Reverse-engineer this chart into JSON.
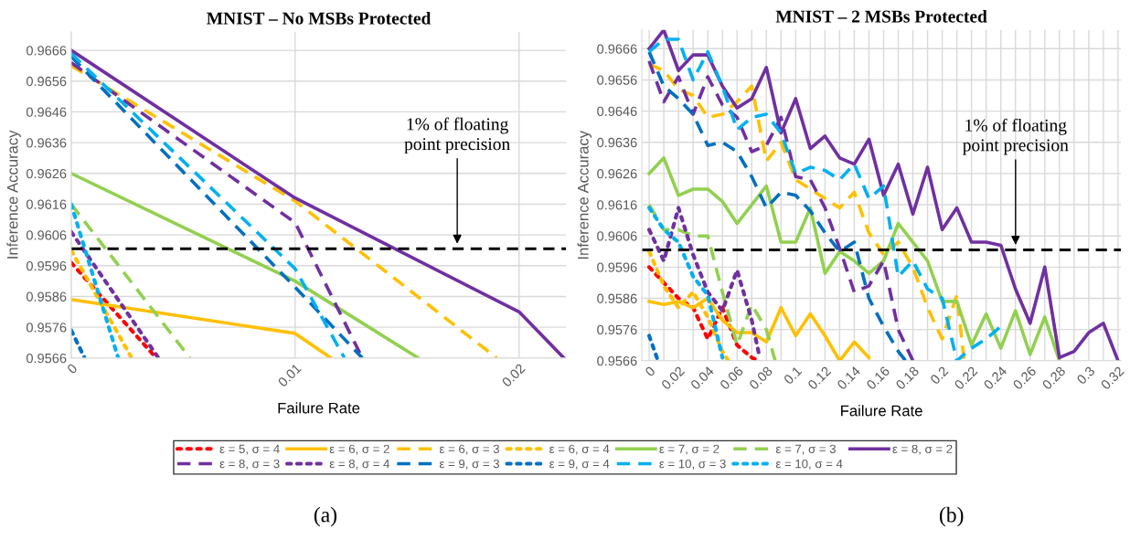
{
  "chart_data": [
    {
      "type": "line",
      "title": "MNIST – No MSBs Protected",
      "xlabel": "Failure Rate",
      "ylabel": "Inference Accuracy",
      "xlim": [
        0,
        0.0221
      ],
      "xticks": [
        0,
        0.01,
        0.02
      ],
      "ylim": [
        0.9566,
        0.9672
      ],
      "yticks": [
        0.9566,
        0.9576,
        0.9586,
        0.9596,
        0.9606,
        0.9616,
        0.9626,
        0.9636,
        0.9646,
        0.9656,
        0.9666
      ],
      "grid": true,
      "legend": "bottom",
      "ref_lines": [
        {
          "axis": "y",
          "value": 0.96015,
          "color": "#000000",
          "line_style": "dashed",
          "label": "1% of floating\npoint precision"
        }
      ],
      "annotations": [
        "(a)"
      ],
      "series": [
        {
          "name": "ε = 5, σ = 4",
          "color": "#ff0000",
          "line_style": "dotted",
          "x": [
            0,
            0.0038
          ],
          "values": [
            0.9597,
            0.9566
          ]
        },
        {
          "name": "ε = 6, σ = 2",
          "color": "#ffc000",
          "line_style": "solid",
          "x": [
            0,
            0.01,
            0.0116
          ],
          "values": [
            0.9585,
            0.9574,
            0.9566
          ]
        },
        {
          "name": "ε = 6, σ = 3",
          "color": "#ffc000",
          "line_style": "dashed",
          "x": [
            0,
            0.01,
            0.019
          ],
          "values": [
            0.9661,
            0.9617,
            0.9566
          ]
        },
        {
          "name": "ε = 6, σ = 4",
          "color": "#ffc000",
          "line_style": "dotted",
          "x": [
            0,
            0.0027
          ],
          "values": [
            0.9601,
            0.9566
          ]
        },
        {
          "name": "ε = 7, σ = 2",
          "color": "#92d050",
          "line_style": "solid",
          "x": [
            0,
            0.01,
            0.0155
          ],
          "values": [
            0.9626,
            0.9591,
            0.9566
          ]
        },
        {
          "name": "ε = 7, σ = 3",
          "color": "#92d050",
          "line_style": "dashed",
          "x": [
            0,
            0.0053
          ],
          "values": [
            0.9616,
            0.9566
          ]
        },
        {
          "name": "ε = 8, σ = 2",
          "color": "#7030a0",
          "line_style": "solid",
          "x": [
            0,
            0.01,
            0.02,
            0.022
          ],
          "values": [
            0.9666,
            0.9618,
            0.9581,
            0.9566
          ]
        },
        {
          "name": "ε = 8, σ = 3",
          "color": "#7030a0",
          "line_style": "dashed",
          "x": [
            0,
            0.01,
            0.013
          ],
          "values": [
            0.9662,
            0.961,
            0.9566
          ]
        },
        {
          "name": "ε = 8, σ = 4",
          "color": "#7030a0",
          "line_style": "dotted",
          "x": [
            0,
            0.0039
          ],
          "values": [
            0.9607,
            0.9566
          ]
        },
        {
          "name": "ε = 9, σ = 3",
          "color": "#0070c0",
          "line_style": "dashed",
          "x": [
            0,
            0.01,
            0.013
          ],
          "values": [
            0.9664,
            0.9589,
            0.9566
          ]
        },
        {
          "name": "ε = 9, σ = 4",
          "color": "#0070c0",
          "line_style": "dotted",
          "x": [
            0,
            0.0006
          ],
          "values": [
            0.9575,
            0.9566
          ]
        },
        {
          "name": "ε = 10, σ = 3",
          "color": "#00b0f0",
          "line_style": "dashed",
          "x": [
            0,
            0.01,
            0.0122
          ],
          "values": [
            0.9665,
            0.9595,
            0.9566
          ]
        },
        {
          "name": "ε = 10, σ = 4",
          "color": "#00b0f0",
          "line_style": "dotted",
          "x": [
            0,
            0.0021
          ],
          "values": [
            0.9616,
            0.9566
          ]
        }
      ]
    },
    {
      "type": "line",
      "title": "MNIST – 2 MSBs Protected",
      "xlabel": "Failure Rate",
      "ylabel": "Inference Accuracy",
      "xlim": [
        -0.005,
        0.322
      ],
      "xticks": [
        0,
        {
          "value": 0.01,
          "label": null
        },
        0.02,
        {
          "value": 0.03,
          "label": null
        },
        0.04,
        {
          "value": 0.05,
          "label": null
        },
        0.06,
        {
          "value": 0.07,
          "label": null
        },
        0.08,
        {
          "value": 0.09,
          "label": null
        },
        0.1,
        {
          "value": 0.11,
          "label": null
        },
        0.12,
        {
          "value": 0.13,
          "label": null
        },
        0.14,
        {
          "value": 0.15,
          "label": null
        },
        0.16,
        {
          "value": 0.17,
          "label": null
        },
        0.18,
        {
          "value": 0.19,
          "label": null
        },
        0.2,
        {
          "value": 0.21,
          "label": null
        },
        0.22,
        {
          "value": 0.23,
          "label": null
        },
        0.24,
        {
          "value": 0.25,
          "label": null
        },
        0.26,
        {
          "value": 0.27,
          "label": null
        },
        0.28,
        {
          "value": 0.29,
          "label": null
        },
        0.3,
        {
          "value": 0.31,
          "label": null
        },
        0.32
      ],
      "ylim": [
        0.9566,
        0.9672
      ],
      "yticks": [
        0.9566,
        0.9576,
        0.9586,
        0.9596,
        0.9606,
        0.9616,
        0.9626,
        0.9636,
        0.9646,
        0.9656,
        0.9666
      ],
      "grid": true,
      "ref_lines": [
        {
          "axis": "y",
          "value": 0.96015,
          "color": "#000000",
          "line_style": "dashed",
          "label": "1% of floating\npoint precision"
        }
      ],
      "annotations": [
        "(b)"
      ],
      "series": [
        {
          "color": "#ff0000",
          "line_style": "dotted",
          "x": [
            0,
            0.01,
            0.02,
            0.03,
            0.04,
            0.05,
            0.06,
            0.07,
            0.075
          ],
          "values": [
            0.9596,
            0.9591,
            0.9586,
            0.9583,
            0.9573,
            0.9583,
            0.9571,
            0.9567,
            0.9566
          ]
        },
        {
          "color": "#ffc000",
          "line_style": "solid",
          "x": [
            0,
            0.01,
            0.02,
            0.03,
            0.04,
            0.05,
            0.06,
            0.07,
            0.08,
            0.09,
            0.1,
            0.11,
            0.12,
            0.13,
            0.14,
            0.15
          ],
          "values": [
            0.9585,
            0.9584,
            0.9585,
            0.9583,
            0.9586,
            0.9579,
            0.9575,
            0.9575,
            0.9572,
            0.9583,
            0.9574,
            0.9581,
            0.9574,
            0.9566,
            0.9572,
            0.9567
          ]
        },
        {
          "color": "#ffc000",
          "line_style": "dashed",
          "x": [
            0,
            0.01,
            0.02,
            0.03,
            0.04,
            0.05,
            0.06,
            0.07,
            0.08,
            0.09,
            0.1,
            0.11,
            0.12,
            0.13,
            0.14,
            0.15,
            0.16,
            0.17,
            0.18,
            0.19,
            0.2,
            0.21,
            0.215
          ],
          "values": [
            0.9661,
            0.9659,
            0.9653,
            0.9651,
            0.9644,
            0.9645,
            0.9649,
            0.9654,
            0.963,
            0.9636,
            0.9624,
            0.9621,
            0.9618,
            0.9615,
            0.962,
            0.9607,
            0.96,
            0.9604,
            0.9596,
            0.9583,
            0.9573,
            0.9587,
            0.9566
          ]
        },
        {
          "color": "#ffc000",
          "line_style": "dotted",
          "x": [
            0,
            0.01,
            0.02,
            0.03,
            0.04,
            0.05,
            0.054
          ],
          "values": [
            0.9601,
            0.959,
            0.9583,
            0.9588,
            0.958,
            0.9569,
            0.9566
          ]
        },
        {
          "color": "#92d050",
          "line_style": "solid",
          "x": [
            0,
            0.01,
            0.02,
            0.03,
            0.04,
            0.05,
            0.06,
            0.07,
            0.08,
            0.09,
            0.1,
            0.11,
            0.12,
            0.13,
            0.14,
            0.15,
            0.16,
            0.17,
            0.18,
            0.19,
            0.2,
            0.21,
            0.22,
            0.23,
            0.24,
            0.25,
            0.26,
            0.27,
            0.28
          ],
          "values": [
            0.9626,
            0.9631,
            0.9619,
            0.9621,
            0.9621,
            0.9617,
            0.961,
            0.9616,
            0.9622,
            0.9604,
            0.9604,
            0.9615,
            0.9594,
            0.9601,
            0.9598,
            0.9594,
            0.9598,
            0.961,
            0.9604,
            0.9598,
            0.9585,
            0.9585,
            0.9571,
            0.9581,
            0.957,
            0.9582,
            0.9568,
            0.958,
            0.9566
          ]
        },
        {
          "color": "#92d050",
          "line_style": "dashed",
          "x": [
            0,
            0.01,
            0.02,
            0.03,
            0.04,
            0.05,
            0.06,
            0.07,
            0.08,
            0.086
          ],
          "values": [
            0.9616,
            0.9608,
            0.9608,
            0.9606,
            0.9606,
            0.9588,
            0.9571,
            0.9584,
            0.9576,
            0.9566
          ]
        },
        {
          "color": "#7030a0",
          "line_style": "solid",
          "x": [
            0,
            0.01,
            0.02,
            0.03,
            0.04,
            0.05,
            0.06,
            0.07,
            0.08,
            0.09,
            0.1,
            0.11,
            0.12,
            0.13,
            0.14,
            0.15,
            0.16,
            0.17,
            0.18,
            0.19,
            0.2,
            0.21,
            0.22,
            0.23,
            0.24,
            0.25,
            0.26,
            0.27,
            0.28,
            0.29,
            0.3,
            0.31,
            0.32
          ],
          "values": [
            0.9666,
            0.9672,
            0.9659,
            0.9664,
            0.9664,
            0.9654,
            0.9647,
            0.965,
            0.966,
            0.9639,
            0.965,
            0.9634,
            0.9638,
            0.9631,
            0.9629,
            0.9637,
            0.9619,
            0.9629,
            0.9613,
            0.9628,
            0.9608,
            0.9615,
            0.9604,
            0.9604,
            0.9603,
            0.9589,
            0.9578,
            0.9596,
            0.9567,
            0.9569,
            0.9575,
            0.9578,
            0.9566
          ]
        },
        {
          "color": "#7030a0",
          "line_style": "dashed",
          "x": [
            0,
            0.01,
            0.02,
            0.03,
            0.04,
            0.05,
            0.06,
            0.07,
            0.08,
            0.09,
            0.1,
            0.11,
            0.12,
            0.13,
            0.14,
            0.15,
            0.16,
            0.17,
            0.18
          ],
          "values": [
            0.9662,
            0.9649,
            0.9657,
            0.9645,
            0.9657,
            0.9648,
            0.9644,
            0.9633,
            0.9635,
            0.9644,
            0.9625,
            0.9624,
            0.9615,
            0.9602,
            0.9588,
            0.959,
            0.9598,
            0.9576,
            0.9566
          ]
        },
        {
          "color": "#7030a0",
          "line_style": "dotted",
          "x": [
            0,
            0.01,
            0.02,
            0.03,
            0.04,
            0.05,
            0.06,
            0.07,
            0.075
          ],
          "values": [
            0.9608,
            0.9598,
            0.9615,
            0.96,
            0.9588,
            0.9582,
            0.9595,
            0.9579,
            0.9568
          ]
        },
        {
          "color": "#0070c0",
          "line_style": "dashed",
          "x": [
            0,
            0.01,
            0.02,
            0.03,
            0.04,
            0.05,
            0.06,
            0.07,
            0.08,
            0.09,
            0.1,
            0.11,
            0.12,
            0.13,
            0.14,
            0.15,
            0.16,
            0.17,
            0.175
          ],
          "values": [
            0.9665,
            0.9654,
            0.965,
            0.9645,
            0.9635,
            0.9636,
            0.9633,
            0.9625,
            0.9615,
            0.962,
            0.9619,
            0.9614,
            0.9607,
            0.9601,
            0.9604,
            0.9586,
            0.9577,
            0.9569,
            0.9566
          ]
        },
        {
          "color": "#0070c0",
          "line_style": "dotted",
          "x": [
            0,
            0.006
          ],
          "values": [
            0.9574,
            0.9566
          ]
        },
        {
          "color": "#00b0f0",
          "line_style": "dashed",
          "x": [
            0,
            0.01,
            0.02,
            0.03,
            0.04,
            0.05,
            0.06,
            0.07,
            0.08,
            0.09,
            0.1,
            0.11,
            0.12,
            0.13,
            0.14,
            0.15,
            0.16,
            0.17,
            0.18,
            0.19,
            0.2,
            0.21,
            0.22,
            0.23,
            0.24
          ],
          "values": [
            0.9665,
            0.9669,
            0.9669,
            0.9656,
            0.9665,
            0.9654,
            0.964,
            0.9644,
            0.9645,
            0.9639,
            0.9626,
            0.9628,
            0.9627,
            0.9624,
            0.9629,
            0.9618,
            0.9622,
            0.9593,
            0.9598,
            0.9589,
            0.9586,
            0.9566,
            0.957,
            0.9573,
            0.9577
          ]
        },
        {
          "color": "#00b0f0",
          "line_style": "dotted",
          "x": [
            0,
            0.01,
            0.02,
            0.03,
            0.04,
            0.05
          ],
          "values": [
            0.9615,
            0.9608,
            0.9604,
            0.9593,
            0.9587,
            0.9567
          ]
        }
      ]
    }
  ]
}
